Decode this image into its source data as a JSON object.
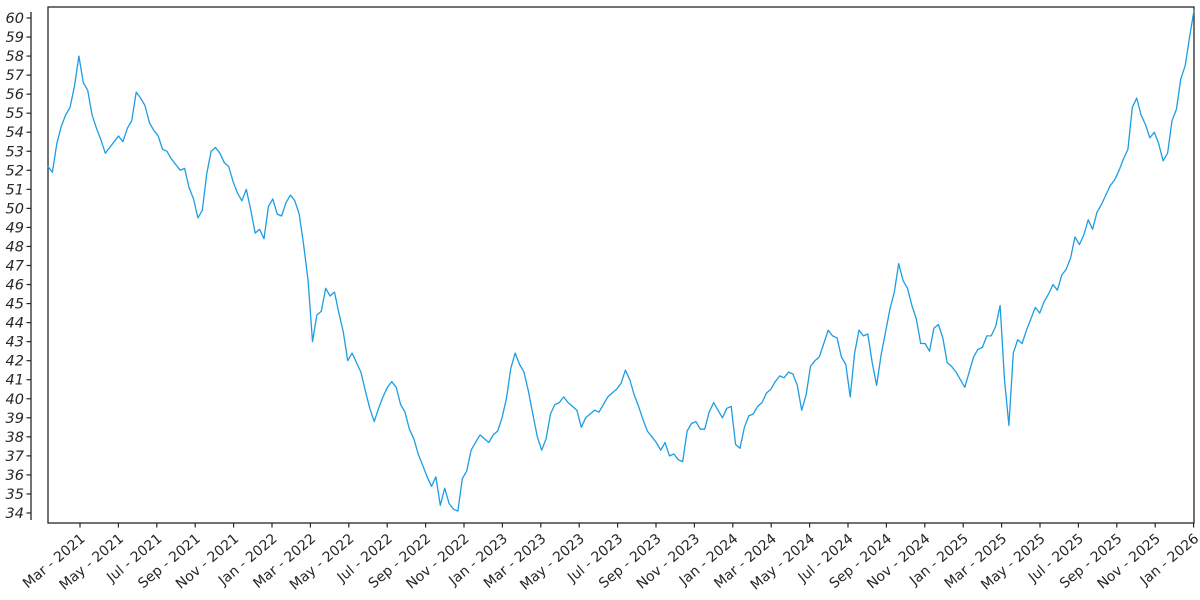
{
  "figure": {
    "background_color": "#ffffff",
    "description": "Line chart of a price-like daily series, no title, no legend, no gridlines"
  },
  "chart_data": {
    "type": "line",
    "title": "",
    "xlabel": "",
    "ylabel": "",
    "grid": false,
    "legend": false,
    "line_color": "#1c9de4",
    "axis_color": "#262626",
    "ylim": [
      33.5,
      60.6
    ],
    "y_tick_values": [
      34,
      35,
      36,
      37,
      38,
      39,
      40,
      41,
      42,
      43,
      44,
      45,
      46,
      47,
      48,
      49,
      50,
      51,
      52,
      53,
      54,
      55,
      56,
      57,
      58,
      59,
      60
    ],
    "x_tick_labels": [
      "Mar - 2021",
      "May - 2021",
      "Jul - 2021",
      "Sep - 2021",
      "Nov - 2021",
      "Jan - 2022",
      "Mar - 2022",
      "May - 2022",
      "Jul - 2022",
      "Sep - 2022",
      "Nov - 2022",
      "Jan - 2023",
      "Mar - 2023",
      "May - 2023",
      "Jul - 2023",
      "Sep - 2023",
      "Nov - 2023",
      "Jan - 2024",
      "Mar - 2024",
      "May - 2024",
      "Jul - 2024",
      "Sep - 2024",
      "Nov - 2024",
      "Jan - 2025",
      "Mar - 2025",
      "May - 2025",
      "Jul - 2025",
      "Sep - 2025",
      "Nov - 2025",
      "Jan - 2026"
    ],
    "x_start_date": "2021-01-11",
    "x_end_date": "2026-01-05",
    "x_interval_days": 7,
    "values": [
      52.2,
      51.9,
      53.4,
      54.3,
      54.9,
      55.3,
      56.4,
      58.0,
      56.6,
      56.2,
      54.9,
      54.2,
      53.6,
      52.9,
      53.2,
      53.5,
      53.8,
      53.5,
      54.2,
      54.6,
      56.1,
      55.8,
      55.4,
      54.5,
      54.1,
      53.8,
      53.1,
      53.0,
      52.6,
      52.3,
      52.0,
      52.1,
      51.1,
      50.5,
      49.5,
      49.9,
      51.8,
      53.0,
      53.2,
      52.9,
      52.4,
      52.2,
      51.4,
      50.8,
      50.4,
      51.0,
      49.9,
      48.7,
      48.9,
      48.4,
      50.1,
      50.5,
      49.7,
      49.6,
      50.3,
      50.7,
      50.4,
      49.7,
      48.1,
      46.2,
      43.0,
      44.4,
      44.6,
      45.8,
      45.4,
      45.6,
      44.5,
      43.5,
      42.0,
      42.4,
      41.9,
      41.4,
      40.4,
      39.5,
      38.8,
      39.5,
      40.1,
      40.6,
      40.9,
      40.6,
      39.7,
      39.3,
      38.4,
      37.9,
      37.1,
      36.5,
      35.9,
      35.4,
      35.9,
      34.4,
      35.3,
      34.5,
      34.2,
      34.1,
      35.8,
      36.2,
      37.3,
      37.7,
      38.1,
      37.9,
      37.7,
      38.1,
      38.3,
      39.0,
      40.0,
      41.6,
      42.4,
      41.8,
      41.4,
      40.4,
      39.2,
      38.0,
      37.3,
      37.9,
      39.2,
      39.7,
      39.8,
      40.1,
      39.8,
      39.6,
      39.4,
      38.5,
      39.0,
      39.2,
      39.4,
      39.3,
      39.7,
      40.1,
      40.3,
      40.5,
      40.8,
      41.5,
      41.0,
      40.2,
      39.6,
      38.9,
      38.3,
      38.0,
      37.7,
      37.3,
      37.7,
      37.0,
      37.1,
      36.8,
      36.7,
      38.3,
      38.7,
      38.8,
      38.4,
      38.4,
      39.3,
      39.8,
      39.4,
      39.0,
      39.5,
      39.6,
      37.6,
      37.4,
      38.5,
      39.1,
      39.2,
      39.6,
      39.8,
      40.3,
      40.5,
      40.9,
      41.2,
      41.1,
      41.4,
      41.3,
      40.7,
      39.4,
      40.2,
      41.7,
      42.0,
      42.2,
      42.9,
      43.6,
      43.3,
      43.2,
      42.2,
      41.8,
      40.1,
      42.4,
      43.6,
      43.3,
      43.4,
      41.9,
      40.7,
      42.3,
      43.5,
      44.7,
      45.6,
      47.1,
      46.2,
      45.8,
      44.9,
      44.2,
      42.9,
      42.9,
      42.5,
      43.7,
      43.9,
      43.2,
      41.9,
      41.7,
      41.4,
      41.0,
      40.6,
      41.4,
      42.2,
      42.6,
      42.7,
      43.3,
      43.3,
      43.8,
      44.9,
      41.0,
      38.6,
      42.4,
      43.1,
      42.9,
      43.6,
      44.2,
      44.8,
      44.5,
      45.1,
      45.5,
      46.0,
      45.7,
      46.5,
      46.8,
      47.4,
      48.5,
      48.1,
      48.6,
      49.4,
      48.9,
      49.8,
      50.2,
      50.7,
      51.2,
      51.5,
      52.0,
      52.6,
      53.1,
      55.3,
      55.8,
      54.9,
      54.4,
      53.7,
      54.0,
      53.4,
      52.5,
      52.9,
      54.6,
      55.2,
      56.8,
      57.5,
      59.0,
      60.4
    ]
  }
}
